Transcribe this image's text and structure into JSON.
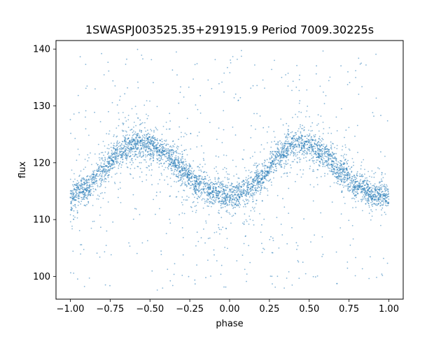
{
  "chart_data": {
    "type": "scatter",
    "title": "1SWASPJ003525.35+291915.9 Period 7009.30225s",
    "xlabel": "phase",
    "ylabel": "flux",
    "xlim": [
      -1.09,
      1.09
    ],
    "ylim": [
      96,
      141.5
    ],
    "xticks": [
      -1.0,
      -0.75,
      -0.5,
      -0.25,
      0.0,
      0.25,
      0.5,
      0.75,
      1.0
    ],
    "xtick_labels": [
      "−1.00",
      "−0.75",
      "−0.50",
      "−0.25",
      "0.00",
      "0.25",
      "0.50",
      "0.75",
      "1.00"
    ],
    "yticks": [
      100,
      110,
      120,
      130,
      140
    ],
    "ytick_labels": [
      "100",
      "110",
      "120",
      "130",
      "140"
    ],
    "grid": false,
    "legend": "none",
    "point_color": "#1f77b4",
    "series": [
      {
        "x": [
          -1.0,
          -0.9,
          -0.8,
          -0.7,
          -0.6,
          -0.55,
          -0.5,
          -0.4,
          -0.3,
          -0.2,
          -0.1,
          0.0,
          0.1,
          0.2,
          0.3,
          0.4,
          0.45,
          0.5,
          0.6,
          0.7,
          0.8,
          0.9,
          1.0
        ],
        "y": [
          114,
          115.5,
          118.5,
          121.5,
          123.2,
          123.5,
          123.2,
          121.5,
          119,
          116.5,
          114.8,
          114,
          115,
          117.5,
          121,
          123.2,
          123.5,
          123.2,
          121.5,
          118.5,
          116,
          114.5,
          114
        ],
        "band_halfwidth": 1.6,
        "outlier_range": [
          97.5,
          140
        ]
      }
    ]
  }
}
